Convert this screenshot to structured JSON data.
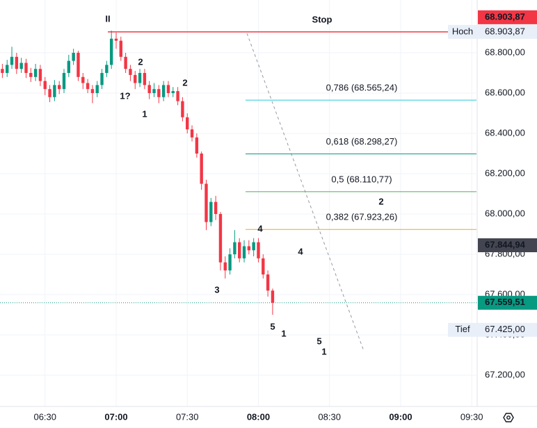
{
  "chart_data": {
    "type": "candlestick",
    "x": [
      "06:12",
      "06:14",
      "06:16",
      "06:18",
      "06:20",
      "06:22",
      "06:24",
      "06:26",
      "06:28",
      "06:30",
      "06:32",
      "06:34",
      "06:36",
      "06:38",
      "06:40",
      "06:42",
      "06:44",
      "06:46",
      "06:48",
      "06:50",
      "06:52",
      "06:54",
      "06:56",
      "06:58",
      "07:00",
      "07:02",
      "07:04",
      "07:06",
      "07:08",
      "07:10",
      "07:12",
      "07:14",
      "07:16",
      "07:18",
      "07:20",
      "07:22",
      "07:24",
      "07:26",
      "07:28",
      "07:30",
      "07:32",
      "07:34",
      "07:36",
      "07:38",
      "07:40",
      "07:42",
      "07:44",
      "07:46",
      "07:48",
      "07:50",
      "07:52",
      "07:54",
      "07:56",
      "07:58",
      "08:00",
      "08:02",
      "08:04",
      "08:06"
    ],
    "open": [
      68720,
      68700,
      68740,
      68780,
      68720,
      68750,
      68700,
      68680,
      68720,
      68660,
      68620,
      68580,
      68640,
      68620,
      68700,
      68760,
      68800,
      68680,
      68650,
      68620,
      68600,
      68640,
      68700,
      68740,
      68870,
      68860,
      68780,
      68720,
      68690,
      68650,
      68700,
      68640,
      68600,
      68620,
      68580,
      68640,
      68600,
      68610,
      68560,
      68480,
      68420,
      68380,
      68300,
      68150,
      67960,
      68060,
      68000,
      67760,
      67720,
      67800,
      67860,
      67780,
      67840,
      67820,
      67860,
      67780,
      67700,
      67620
    ],
    "high": [
      68745,
      68765,
      68830,
      68800,
      68775,
      68770,
      68725,
      68745,
      68740,
      68680,
      68640,
      68665,
      68660,
      68720,
      68790,
      68820,
      68810,
      68700,
      68670,
      68640,
      68660,
      68720,
      68760,
      68910,
      68900,
      68880,
      68800,
      68740,
      68710,
      68720,
      68720,
      68660,
      68650,
      68640,
      68660,
      68660,
      68630,
      68630,
      68580,
      68500,
      68440,
      68400,
      68310,
      68170,
      68080,
      68090,
      68010,
      67790,
      67830,
      67920,
      67880,
      67870,
      67870,
      67880,
      67880,
      67800,
      67720,
      67630
    ],
    "low": [
      68675,
      68680,
      68720,
      68695,
      68700,
      68675,
      68655,
      68660,
      68635,
      68590,
      68555,
      68560,
      68595,
      68600,
      68680,
      68740,
      68660,
      68620,
      68600,
      68550,
      68580,
      68620,
      68680,
      68720,
      68820,
      68760,
      68700,
      68660,
      68620,
      68630,
      68620,
      68570,
      68580,
      68550,
      68560,
      68580,
      68580,
      68540,
      68460,
      68400,
      68360,
      68280,
      68120,
      67920,
      67940,
      67970,
      67720,
      67680,
      67700,
      67780,
      67760,
      67760,
      67800,
      67790,
      67760,
      67680,
      67590,
      67500
    ],
    "close": [
      68700,
      68740,
      68780,
      68720,
      68750,
      68700,
      68680,
      68720,
      68660,
      68620,
      68580,
      68640,
      68620,
      68700,
      68760,
      68800,
      68680,
      68650,
      68620,
      68600,
      68640,
      68700,
      68740,
      68870,
      68860,
      68780,
      68720,
      68690,
      68650,
      68700,
      68640,
      68600,
      68620,
      68580,
      68640,
      68600,
      68610,
      68560,
      68480,
      68420,
      68380,
      68300,
      68150,
      67960,
      68060,
      68000,
      67760,
      67720,
      67800,
      67860,
      67780,
      67840,
      67820,
      67860,
      67780,
      67700,
      67620,
      67560
    ],
    "up_color": "#089981",
    "down_color": "#f23645",
    "xlim": [
      "06:11",
      "09:32"
    ],
    "xticks": [
      "06:30",
      "07:00",
      "07:30",
      "08:00",
      "08:30",
      "09:00",
      "09:30"
    ],
    "ylim": [
      67045,
      69062
    ],
    "yticks": [
      {
        "value": 67200,
        "label": "67.200,00"
      },
      {
        "value": 67400,
        "label": "67.400,00"
      },
      {
        "value": 67600,
        "label": "67.600,00"
      },
      {
        "value": 67800,
        "label": "67.800,00"
      },
      {
        "value": 68000,
        "label": "68.000,00"
      },
      {
        "value": 68200,
        "label": "68.200,00"
      },
      {
        "value": 68400,
        "label": "68.400,00"
      },
      {
        "value": 68600,
        "label": "68.600,00"
      },
      {
        "value": 68800,
        "label": "68.800,00"
      }
    ],
    "grid": true,
    "levels": [
      {
        "name": "Stop",
        "value": 68903.87,
        "color": "#f23645"
      },
      {
        "name": "0,786 (68.565,24)",
        "value": 68565.24,
        "color": "#26c6da"
      },
      {
        "name": "0,618 (68.298,27)",
        "value": 68298.27,
        "color": "#089981"
      },
      {
        "name": "0,5 (68.110,77)",
        "value": 68110.77,
        "color": "#4caf50"
      },
      {
        "name": "0,382 (67.923,26)",
        "value": 67923.26,
        "color": "#f7a21b"
      }
    ],
    "current_price": {
      "value": 67559.51,
      "label": "67.559,51",
      "color": "#089981"
    },
    "price_labels": [
      {
        "value": 68903.87,
        "label": "68.903,87",
        "color": "#f23645"
      },
      {
        "name": "Hoch",
        "value": 68903.87,
        "label": "68.903,87"
      },
      {
        "value": 67844.94,
        "label": "67.844,94",
        "color": "#434651"
      },
      {
        "name": "Tief",
        "value": 67425,
        "label": "67.425,00"
      }
    ],
    "annotations": [
      "II",
      "2",
      "1?",
      "1",
      "2",
      "3",
      "4",
      "4",
      "5",
      "1",
      "5",
      "1",
      "2"
    ]
  }
}
